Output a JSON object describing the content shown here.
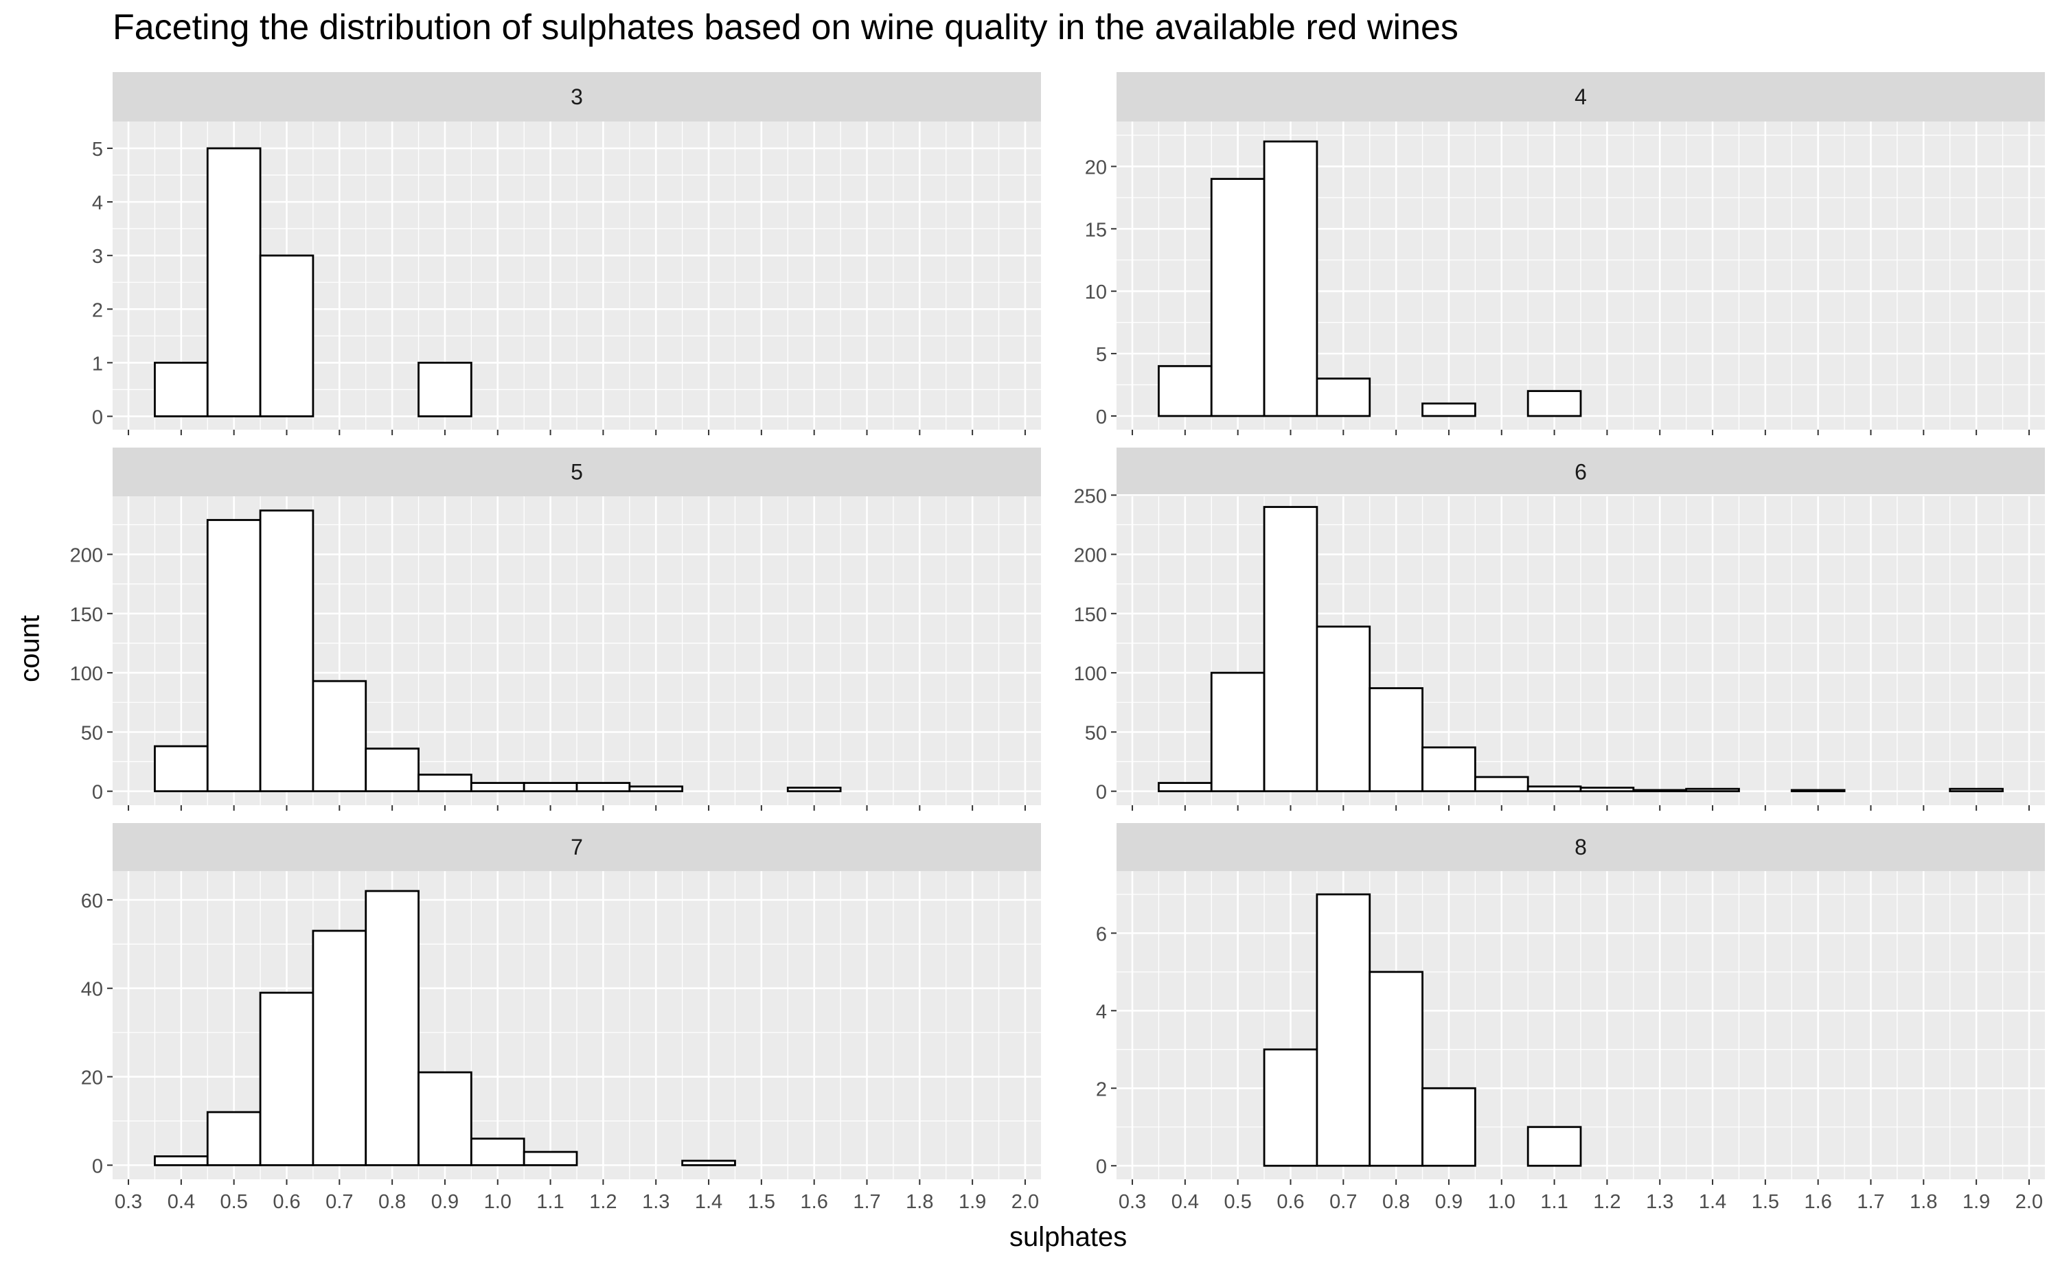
{
  "chart_data": {
    "type": "bar",
    "subtype": "faceted-histogram",
    "title": "Faceting the distribution of sulphates based on wine quality in the available red wines",
    "xlabel": "sulphates",
    "ylabel": "count",
    "bin_width": 0.1,
    "bin_centers": [
      0.4,
      0.5,
      0.6,
      0.7,
      0.8,
      0.9,
      1.0,
      1.1,
      1.2,
      1.3,
      1.4,
      1.5,
      1.6,
      1.7,
      1.8,
      1.9
    ],
    "xlim": [
      0.27,
      2.03
    ],
    "x_ticks": [
      "0.3",
      "0.4",
      "0.5",
      "0.6",
      "0.7",
      "0.8",
      "0.9",
      "1.0",
      "1.1",
      "1.2",
      "1.3",
      "1.4",
      "1.5",
      "1.6",
      "1.7",
      "1.8",
      "1.9",
      "2.0"
    ],
    "grid": true,
    "facets": [
      {
        "label": "3",
        "ylim": [
          -0.25,
          5.5
        ],
        "y_ticks": [
          0,
          1,
          2,
          3,
          4,
          5
        ],
        "values": [
          1,
          5,
          3,
          0,
          0,
          1,
          0,
          0,
          0,
          0,
          0,
          0,
          0,
          0,
          0,
          0
        ]
      },
      {
        "label": "4",
        "ylim": [
          -1.1,
          23.6
        ],
        "y_ticks": [
          0,
          5,
          10,
          15,
          20
        ],
        "values": [
          4,
          19,
          22,
          3,
          0,
          1,
          0,
          2,
          0,
          0,
          0,
          0,
          0,
          0,
          0,
          0
        ]
      },
      {
        "label": "5",
        "ylim": [
          -11.8,
          249
        ],
        "y_ticks": [
          0,
          50,
          100,
          150,
          200
        ],
        "values": [
          38,
          229,
          237,
          93,
          36,
          14,
          7,
          7,
          7,
          4,
          0,
          0,
          3,
          0,
          0,
          0
        ]
      },
      {
        "label": "6",
        "ylim": [
          -11.8,
          249
        ],
        "y_ticks": [
          0,
          50,
          100,
          150,
          200,
          250
        ],
        "values": [
          7,
          100,
          240,
          139,
          87,
          37,
          12,
          4,
          3,
          1,
          2,
          0,
          1,
          0,
          0,
          2
        ]
      },
      {
        "label": "7",
        "ylim": [
          -3.2,
          66.5
        ],
        "y_ticks": [
          0,
          20,
          40,
          60
        ],
        "values": [
          2,
          12,
          39,
          53,
          62,
          21,
          6,
          3,
          0,
          0,
          1,
          0,
          0,
          0,
          0,
          0
        ]
      },
      {
        "label": "8",
        "ylim": [
          -0.35,
          7.6
        ],
        "y_ticks": [
          0,
          2,
          4,
          6
        ],
        "values": [
          0,
          0,
          3,
          7,
          5,
          2,
          0,
          1,
          0,
          0,
          0,
          0,
          0,
          0,
          0,
          0
        ]
      }
    ]
  }
}
